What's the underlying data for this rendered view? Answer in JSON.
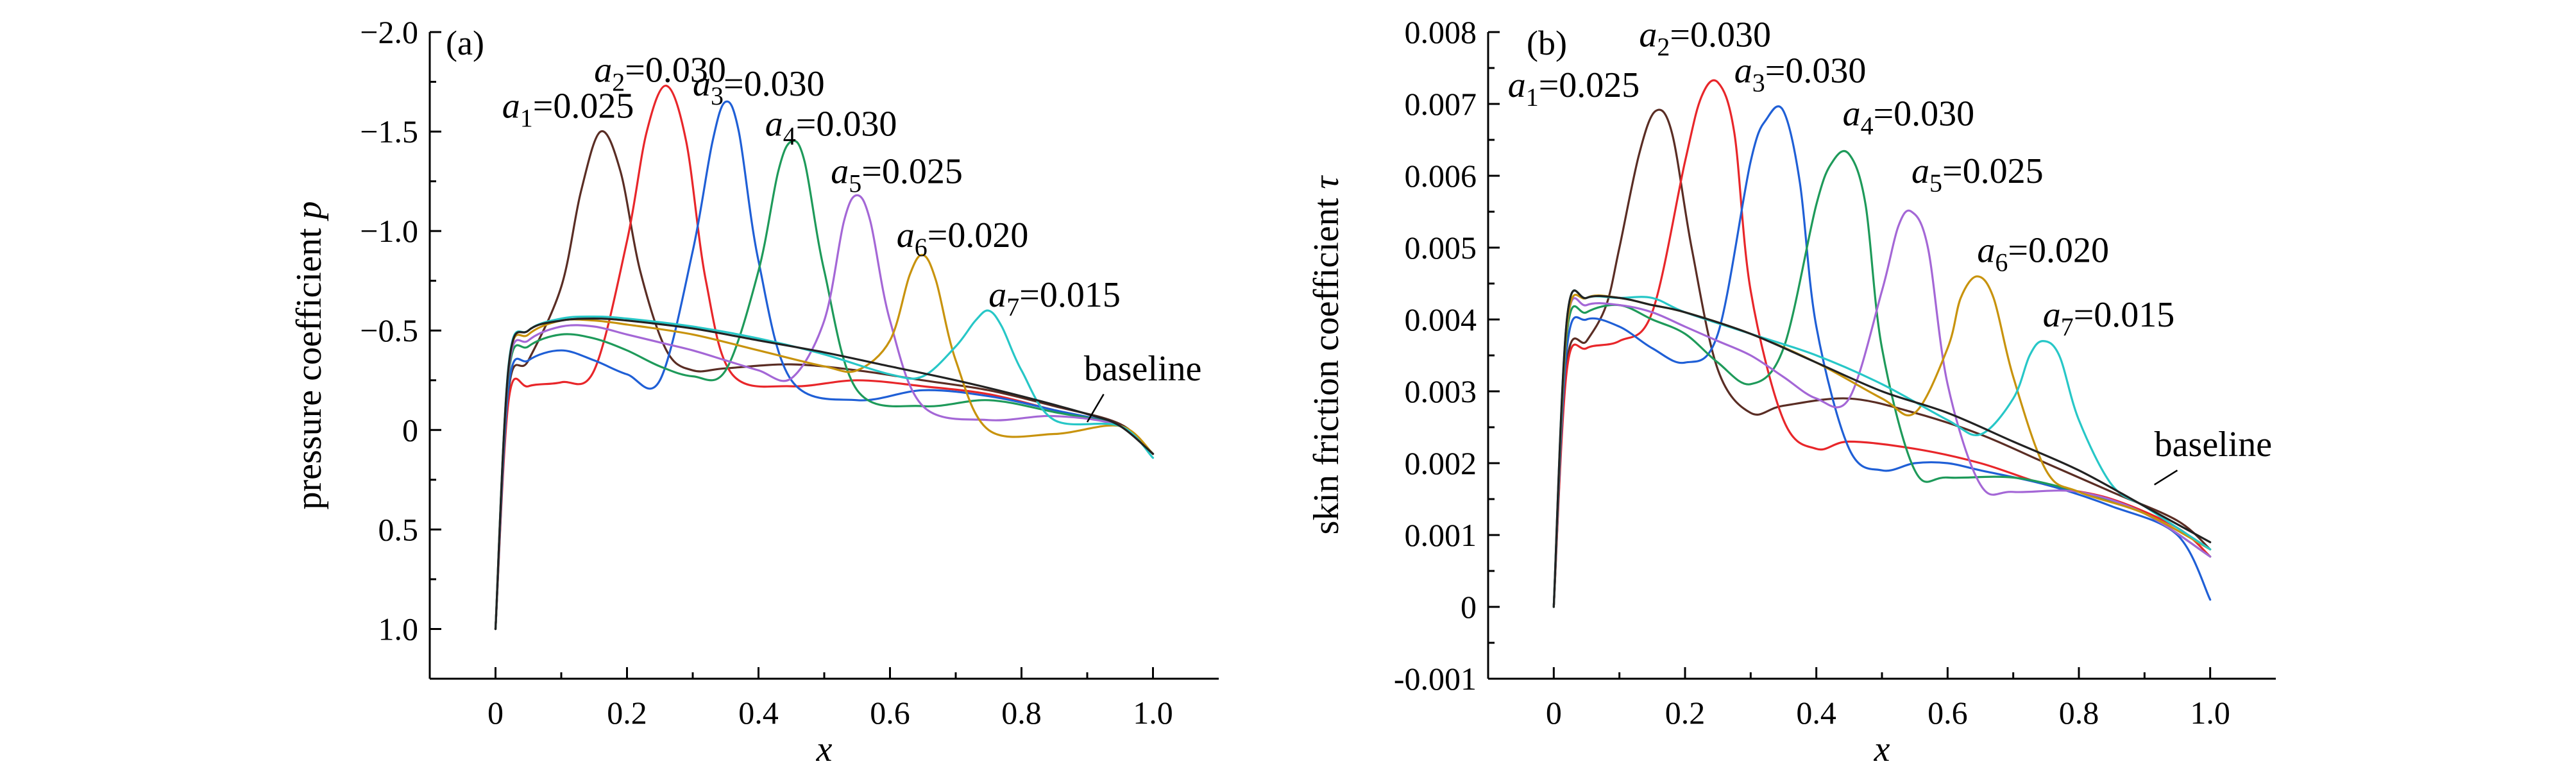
{
  "chart_data": [
    {
      "type": "line",
      "panel_label": "(a)",
      "xlabel": "x",
      "ylabel_text": "pressure coefficient ",
      "ylabel_symbol": "p",
      "xlim": [
        -0.1,
        1.1
      ],
      "ylim": [
        1.25,
        -2.0
      ],
      "y_inverted": true,
      "xticks": [
        "0",
        "0.2",
        "0.4",
        "0.6",
        "0.8",
        "1.0"
      ],
      "yticks": [
        "−2.0",
        "−1.5",
        "−1.0",
        "−0.5",
        "0",
        "0.5",
        "1.0"
      ],
      "grid": false,
      "series": [
        {
          "name": "a1",
          "color": "#5a2d24",
          "x": [
            0,
            0.02,
            0.05,
            0.1,
            0.13,
            0.16,
            0.19,
            0.22,
            0.26,
            0.3,
            0.35,
            0.45,
            0.55,
            0.65,
            0.75,
            0.85,
            0.95,
            1.0
          ],
          "values": [
            1.0,
            -0.2,
            -0.35,
            -0.72,
            -1.2,
            -1.5,
            -1.3,
            -0.8,
            -0.4,
            -0.3,
            -0.31,
            -0.33,
            -0.3,
            -0.25,
            -0.2,
            -0.12,
            -0.03,
            0.12
          ]
        },
        {
          "name": "a2",
          "color": "#e8262a",
          "x": [
            0,
            0.02,
            0.05,
            0.1,
            0.15,
            0.2,
            0.23,
            0.26,
            0.29,
            0.32,
            0.36,
            0.45,
            0.55,
            0.65,
            0.75,
            0.85,
            0.95,
            1.0
          ],
          "values": [
            1.0,
            -0.15,
            -0.22,
            -0.24,
            -0.3,
            -0.95,
            -1.5,
            -1.73,
            -1.45,
            -0.75,
            -0.28,
            -0.22,
            -0.25,
            -0.22,
            -0.18,
            -0.1,
            -0.02,
            0.12
          ]
        },
        {
          "name": "a3",
          "color": "#1f5fd6",
          "x": [
            0,
            0.02,
            0.05,
            0.1,
            0.15,
            0.2,
            0.25,
            0.3,
            0.33,
            0.35,
            0.37,
            0.4,
            0.45,
            0.55,
            0.65,
            0.75,
            0.85,
            0.95,
            1.0
          ],
          "values": [
            1.0,
            -0.22,
            -0.35,
            -0.4,
            -0.35,
            -0.28,
            -0.25,
            -0.9,
            -1.45,
            -1.65,
            -1.5,
            -0.85,
            -0.25,
            -0.15,
            -0.2,
            -0.17,
            -0.1,
            -0.02,
            0.12
          ]
        },
        {
          "name": "a4",
          "color": "#1e9a5a",
          "x": [
            0,
            0.02,
            0.05,
            0.1,
            0.15,
            0.2,
            0.25,
            0.3,
            0.35,
            0.4,
            0.43,
            0.45,
            0.47,
            0.5,
            0.55,
            0.65,
            0.75,
            0.85,
            0.95,
            1.0
          ],
          "values": [
            1.0,
            -0.28,
            -0.42,
            -0.48,
            -0.46,
            -0.4,
            -0.32,
            -0.27,
            -0.3,
            -0.8,
            -1.3,
            -1.45,
            -1.35,
            -0.8,
            -0.2,
            -0.12,
            -0.15,
            -0.09,
            -0.02,
            0.12
          ]
        },
        {
          "name": "a5",
          "color": "#a467d6",
          "x": [
            0,
            0.02,
            0.05,
            0.1,
            0.15,
            0.2,
            0.25,
            0.3,
            0.35,
            0.4,
            0.45,
            0.5,
            0.53,
            0.55,
            0.57,
            0.6,
            0.65,
            0.75,
            0.85,
            0.95,
            1.0
          ],
          "values": [
            1.0,
            -0.3,
            -0.45,
            -0.52,
            -0.52,
            -0.48,
            -0.44,
            -0.4,
            -0.35,
            -0.3,
            -0.26,
            -0.55,
            -1.05,
            -1.18,
            -1.05,
            -0.55,
            -0.12,
            -0.05,
            -0.07,
            -0.02,
            0.12
          ]
        },
        {
          "name": "a6",
          "color": "#c8930d",
          "x": [
            0,
            0.02,
            0.05,
            0.1,
            0.15,
            0.2,
            0.3,
            0.4,
            0.5,
            0.55,
            0.6,
            0.63,
            0.65,
            0.67,
            0.7,
            0.75,
            0.85,
            0.95,
            1.0
          ],
          "values": [
            1.0,
            -0.32,
            -0.48,
            -0.55,
            -0.55,
            -0.53,
            -0.48,
            -0.4,
            -0.32,
            -0.3,
            -0.45,
            -0.78,
            -0.88,
            -0.75,
            -0.35,
            0.0,
            0.02,
            -0.02,
            0.12
          ]
        },
        {
          "name": "a7",
          "color": "#27c7c7",
          "x": [
            0,
            0.02,
            0.05,
            0.1,
            0.15,
            0.2,
            0.3,
            0.4,
            0.5,
            0.6,
            0.65,
            0.7,
            0.73,
            0.75,
            0.77,
            0.8,
            0.85,
            0.95,
            1.0
          ],
          "values": [
            1.0,
            -0.33,
            -0.5,
            -0.56,
            -0.57,
            -0.56,
            -0.52,
            -0.46,
            -0.38,
            -0.28,
            -0.27,
            -0.42,
            -0.55,
            -0.6,
            -0.52,
            -0.3,
            -0.05,
            -0.02,
            0.14
          ]
        },
        {
          "name": "baseline",
          "color": "#222222",
          "x": [
            0,
            0.02,
            0.05,
            0.1,
            0.15,
            0.2,
            0.3,
            0.4,
            0.5,
            0.6,
            0.7,
            0.8,
            0.9,
            0.95,
            1.0
          ],
          "values": [
            1.0,
            -0.32,
            -0.5,
            -0.55,
            -0.56,
            -0.55,
            -0.51,
            -0.45,
            -0.39,
            -0.32,
            -0.25,
            -0.17,
            -0.08,
            -0.02,
            0.12
          ]
        }
      ],
      "annotations": [
        {
          "sym": "a",
          "sub": "1",
          "val": "=0.025",
          "x": 0.01,
          "y": -1.57
        },
        {
          "sym": "a",
          "sub": "2",
          "val": "=0.030",
          "x": 0.15,
          "y": -1.75
        },
        {
          "sym": "a",
          "sub": "3",
          "val": "=0.030",
          "x": 0.3,
          "y": -1.68
        },
        {
          "sym": "a",
          "sub": "4",
          "val": "=0.030",
          "x": 0.41,
          "y": -1.48
        },
        {
          "sym": "a",
          "sub": "5",
          "val": "=0.025",
          "x": 0.51,
          "y": -1.24
        },
        {
          "sym": "a",
          "sub": "6",
          "val": "=0.020",
          "x": 0.61,
          "y": -0.92
        },
        {
          "sym": "a",
          "sub": "7",
          "val": "=0.015",
          "x": 0.75,
          "y": -0.62
        },
        {
          "text": "baseline",
          "x": 0.895,
          "y": -0.25
        }
      ],
      "leader": {
        "from": [
          0.925,
          -0.18
        ],
        "to": [
          0.9,
          -0.04
        ]
      }
    },
    {
      "type": "line",
      "panel_label": "(b)",
      "xlabel": "x",
      "ylabel_text": "skin friction coefficient ",
      "ylabel_symbol": "τ",
      "xlim": [
        -0.1,
        1.1
      ],
      "ylim": [
        -0.001,
        0.008
      ],
      "y_inverted": false,
      "xticks": [
        "0",
        "0.2",
        "0.4",
        "0.6",
        "0.8",
        "1.0"
      ],
      "yticks": [
        "-0.001",
        "0",
        "0.001",
        "0.002",
        "0.003",
        "0.004",
        "0.005",
        "0.006",
        "0.007",
        "0.008"
      ],
      "grid": false,
      "series": [
        {
          "name": "a1",
          "color": "#5a2d24",
          "x": [
            0,
            0.02,
            0.05,
            0.08,
            0.1,
            0.13,
            0.155,
            0.18,
            0.21,
            0.25,
            0.3,
            0.35,
            0.45,
            0.55,
            0.65,
            0.75,
            0.85,
            0.95,
            1.0
          ],
          "values": [
            0.0,
            0.0034,
            0.0037,
            0.0042,
            0.005,
            0.0063,
            0.0069,
            0.0066,
            0.005,
            0.0033,
            0.0027,
            0.0028,
            0.0029,
            0.0027,
            0.0024,
            0.002,
            0.0016,
            0.0012,
            0.0008
          ]
        },
        {
          "name": "a2",
          "color": "#e8262a",
          "x": [
            0,
            0.02,
            0.05,
            0.1,
            0.15,
            0.2,
            0.225,
            0.25,
            0.275,
            0.3,
            0.35,
            0.4,
            0.45,
            0.55,
            0.65,
            0.75,
            0.85,
            0.95,
            1.0
          ],
          "values": [
            0.0,
            0.0033,
            0.0036,
            0.0037,
            0.0041,
            0.0062,
            0.0071,
            0.0073,
            0.0066,
            0.0044,
            0.0026,
            0.0022,
            0.0023,
            0.0022,
            0.002,
            0.0017,
            0.0015,
            0.0011,
            0.0007
          ]
        },
        {
          "name": "a3",
          "color": "#1f5fd6",
          "x": [
            0,
            0.02,
            0.05,
            0.1,
            0.15,
            0.2,
            0.25,
            0.3,
            0.325,
            0.35,
            0.375,
            0.4,
            0.45,
            0.5,
            0.55,
            0.6,
            0.65,
            0.75,
            0.85,
            0.95,
            1.0
          ],
          "values": [
            0.0,
            0.0036,
            0.004,
            0.0039,
            0.0036,
            0.0034,
            0.0038,
            0.0062,
            0.0068,
            0.0069,
            0.0059,
            0.0039,
            0.0022,
            0.0019,
            0.002,
            0.002,
            0.0019,
            0.0017,
            0.0014,
            0.001,
            0.0001
          ]
        },
        {
          "name": "a4",
          "color": "#1e9a5a",
          "x": [
            0,
            0.02,
            0.05,
            0.1,
            0.15,
            0.2,
            0.25,
            0.3,
            0.35,
            0.4,
            0.425,
            0.45,
            0.475,
            0.5,
            0.55,
            0.6,
            0.7,
            0.8,
            0.9,
            1.0
          ],
          "values": [
            0.0,
            0.0038,
            0.0041,
            0.0042,
            0.004,
            0.0038,
            0.0034,
            0.0031,
            0.0036,
            0.0056,
            0.0062,
            0.0063,
            0.0056,
            0.0036,
            0.0019,
            0.0018,
            0.0018,
            0.0016,
            0.0013,
            0.0007
          ]
        },
        {
          "name": "a5",
          "color": "#a467d6",
          "x": [
            0,
            0.02,
            0.05,
            0.1,
            0.15,
            0.2,
            0.25,
            0.3,
            0.35,
            0.4,
            0.45,
            0.5,
            0.525,
            0.545,
            0.57,
            0.6,
            0.65,
            0.7,
            0.8,
            0.9,
            1.0
          ],
          "values": [
            0.0,
            0.0039,
            0.0042,
            0.0042,
            0.0041,
            0.0039,
            0.0037,
            0.0035,
            0.0032,
            0.0029,
            0.0029,
            0.0044,
            0.0053,
            0.0055,
            0.005,
            0.0031,
            0.0017,
            0.0016,
            0.0016,
            0.0013,
            0.0007
          ]
        },
        {
          "name": "a6",
          "color": "#c8930d",
          "x": [
            0,
            0.02,
            0.05,
            0.1,
            0.15,
            0.2,
            0.3,
            0.4,
            0.5,
            0.55,
            0.6,
            0.62,
            0.645,
            0.67,
            0.7,
            0.75,
            0.8,
            0.9,
            1.0
          ],
          "values": [
            0.0,
            0.0039,
            0.0043,
            0.0043,
            0.0042,
            0.0041,
            0.0038,
            0.0034,
            0.0029,
            0.0027,
            0.0036,
            0.0043,
            0.0046,
            0.0043,
            0.0032,
            0.0019,
            0.0016,
            0.0013,
            0.0008
          ]
        },
        {
          "name": "a7",
          "color": "#27c7c7",
          "x": [
            0,
            0.02,
            0.05,
            0.1,
            0.15,
            0.2,
            0.3,
            0.4,
            0.5,
            0.6,
            0.65,
            0.7,
            0.725,
            0.745,
            0.77,
            0.8,
            0.85,
            0.9,
            0.95,
            1.0
          ],
          "values": [
            0.0,
            0.004,
            0.0043,
            0.0043,
            0.0043,
            0.0041,
            0.0038,
            0.0035,
            0.0031,
            0.0026,
            0.0024,
            0.0029,
            0.0035,
            0.0037,
            0.0035,
            0.0026,
            0.0017,
            0.0014,
            0.0011,
            0.0008
          ]
        },
        {
          "name": "baseline",
          "color": "#222222",
          "x": [
            0,
            0.02,
            0.05,
            0.1,
            0.15,
            0.2,
            0.3,
            0.4,
            0.5,
            0.6,
            0.7,
            0.8,
            0.9,
            1.0
          ],
          "values": [
            0.0,
            0.004,
            0.0043,
            0.0043,
            0.0042,
            0.0041,
            0.0038,
            0.0034,
            0.003,
            0.0027,
            0.0023,
            0.0019,
            0.0014,
            0.0009
          ]
        }
      ],
      "annotations": [
        {
          "sym": "a",
          "sub": "1",
          "val": "=0.025",
          "x": -0.07,
          "y": 0.0071
        },
        {
          "sym": "a",
          "sub": "2",
          "val": "=0.030",
          "x": 0.13,
          "y": 0.0078
        },
        {
          "sym": "a",
          "sub": "3",
          "val": "=0.030",
          "x": 0.275,
          "y": 0.0073
        },
        {
          "sym": "a",
          "sub": "4",
          "val": "=0.030",
          "x": 0.44,
          "y": 0.0067
        },
        {
          "sym": "a",
          "sub": "5",
          "val": "=0.025",
          "x": 0.545,
          "y": 0.0059
        },
        {
          "sym": "a",
          "sub": "6",
          "val": "=0.020",
          "x": 0.645,
          "y": 0.0048
        },
        {
          "sym": "a",
          "sub": "7",
          "val": "=0.015",
          "x": 0.745,
          "y": 0.0039
        },
        {
          "text": "baseline",
          "x": 0.915,
          "y": 0.0021
        }
      ],
      "leader": {
        "from": [
          0.95,
          0.0019
        ],
        "to": [
          0.915,
          0.0017
        ]
      }
    }
  ]
}
